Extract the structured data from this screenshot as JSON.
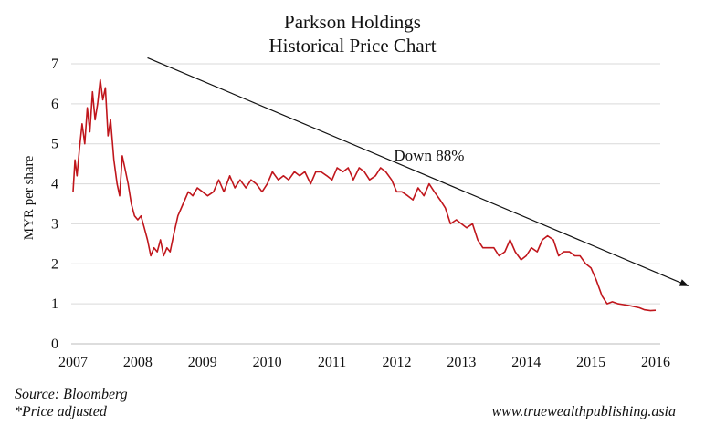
{
  "chart_data": {
    "type": "line",
    "title": "Parkson Holdings",
    "subtitle": "Historical Price Chart",
    "ylabel": "MYR per share",
    "xlabel": "",
    "ylim": [
      0,
      7
    ],
    "xlim": [
      2007,
      2016
    ],
    "yticks": [
      "0",
      "1",
      "2",
      "3",
      "4",
      "5",
      "6",
      "7"
    ],
    "xticks": [
      "2007",
      "2008",
      "2009",
      "2010",
      "2011",
      "2012",
      "2013",
      "2014",
      "2015",
      "2016"
    ],
    "grid": "horizontal",
    "line_color": "#c0161c",
    "series": [
      {
        "x": [
          2007.0,
          2007.03,
          2007.06,
          2007.1,
          2007.14,
          2007.18,
          2007.22,
          2007.26,
          2007.3,
          2007.34,
          2007.38,
          2007.42,
          2007.46,
          2007.5,
          2007.54,
          2007.58,
          2007.63,
          2007.68,
          2007.72,
          2007.76,
          2007.8,
          2007.85,
          2007.9,
          2007.95,
          2008.0,
          2008.05,
          2008.1,
          2008.15,
          2008.2,
          2008.25,
          2008.3,
          2008.35,
          2008.4,
          2008.45,
          2008.5,
          2008.55,
          2008.62,
          2008.7,
          2008.78,
          2008.85,
          2008.92,
          2009.0,
          2009.08,
          2009.17,
          2009.25,
          2009.33,
          2009.42,
          2009.5,
          2009.58,
          2009.67,
          2009.75,
          2009.83,
          2009.92,
          2010.0,
          2010.08,
          2010.17,
          2010.25,
          2010.33,
          2010.42,
          2010.5,
          2010.58,
          2010.67,
          2010.75,
          2010.83,
          2010.92,
          2011.0,
          2011.08,
          2011.17,
          2011.25,
          2011.33,
          2011.42,
          2011.5,
          2011.58,
          2011.67,
          2011.75,
          2011.83,
          2011.92,
          2012.0,
          2012.08,
          2012.17,
          2012.25,
          2012.33,
          2012.42,
          2012.5,
          2012.58,
          2012.67,
          2012.75,
          2012.83,
          2012.92,
          2013.0,
          2013.08,
          2013.17,
          2013.25,
          2013.33,
          2013.42,
          2013.5,
          2013.58,
          2013.67,
          2013.75,
          2013.83,
          2013.92,
          2014.0,
          2014.08,
          2014.17,
          2014.25,
          2014.33,
          2014.42,
          2014.5,
          2014.58,
          2014.67,
          2014.75,
          2014.83,
          2014.92,
          2015.0,
          2015.08,
          2015.17,
          2015.25,
          2015.33,
          2015.42,
          2015.5,
          2015.58,
          2015.67,
          2015.75,
          2015.83,
          2015.92,
          2016.0
        ],
        "values": [
          3.8,
          4.6,
          4.2,
          4.9,
          5.5,
          5.0,
          5.9,
          5.3,
          6.3,
          5.6,
          6.0,
          6.6,
          6.1,
          6.4,
          5.2,
          5.6,
          4.6,
          4.0,
          3.7,
          4.7,
          4.4,
          4.0,
          3.5,
          3.2,
          3.1,
          3.2,
          2.9,
          2.6,
          2.2,
          2.4,
          2.3,
          2.6,
          2.2,
          2.4,
          2.3,
          2.7,
          3.2,
          3.5,
          3.8,
          3.7,
          3.9,
          3.8,
          3.7,
          3.8,
          4.1,
          3.8,
          4.2,
          3.9,
          4.1,
          3.9,
          4.1,
          4.0,
          3.8,
          4.0,
          4.3,
          4.1,
          4.2,
          4.1,
          4.3,
          4.2,
          4.3,
          4.0,
          4.3,
          4.3,
          4.2,
          4.1,
          4.4,
          4.3,
          4.4,
          4.1,
          4.4,
          4.3,
          4.1,
          4.2,
          4.4,
          4.3,
          4.1,
          3.8,
          3.8,
          3.7,
          3.6,
          3.9,
          3.7,
          4.0,
          3.8,
          3.6,
          3.4,
          3.0,
          3.1,
          3.0,
          2.9,
          3.0,
          2.6,
          2.4,
          2.4,
          2.4,
          2.2,
          2.3,
          2.6,
          2.3,
          2.1,
          2.2,
          2.4,
          2.3,
          2.6,
          2.7,
          2.6,
          2.2,
          2.3,
          2.3,
          2.2,
          2.2,
          2.0,
          1.9,
          1.6,
          1.2,
          1.0,
          1.05,
          1.0,
          0.98,
          0.96,
          0.93,
          0.9,
          0.85,
          0.83,
          0.84
        ]
      }
    ],
    "annotations": [
      {
        "text": "Down 88%",
        "x": 2012.5,
        "y": 4.7
      }
    ],
    "trend_arrow": {
      "from": [
        2008.15,
        7.15
      ],
      "to": [
        2016.5,
        1.45
      ]
    }
  },
  "footer": {
    "source": "Source: Bloomberg",
    "note": "*Price adjusted",
    "website": "www.truewealthpublishing.asia"
  }
}
